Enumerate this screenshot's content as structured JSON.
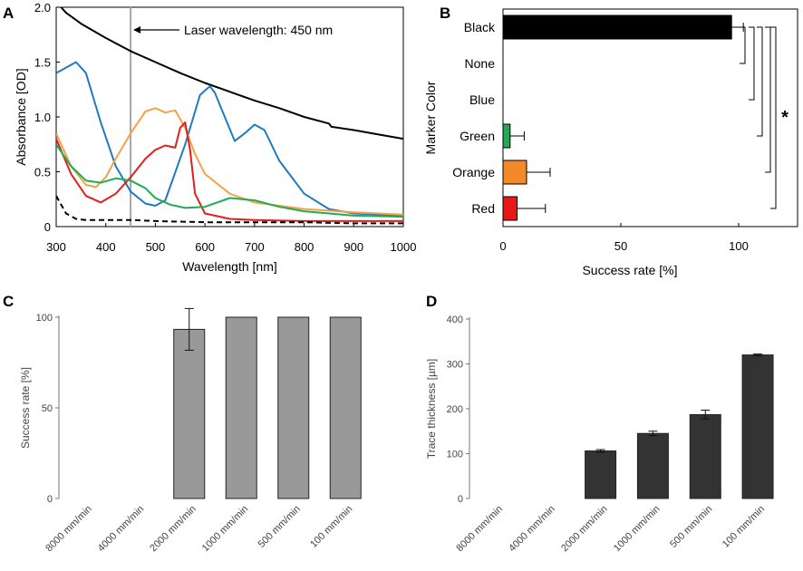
{
  "chart_data": [
    {
      "panel": "A",
      "type": "line",
      "title": "",
      "xlabel": "Wavelength [nm]",
      "ylabel": "Absorbance [OD]",
      "xlim": [
        300,
        1000
      ],
      "ylim": [
        0,
        2.0
      ],
      "x_ticks": [
        300,
        400,
        500,
        600,
        700,
        800,
        900,
        1000
      ],
      "y_ticks": [
        "0",
        "0.5",
        "1.0",
        "1.5",
        "2.0"
      ],
      "annotation": "Laser wavelength: 450 nm",
      "annotation_x": 450,
      "series": [
        {
          "name": "Black",
          "color": "#000000",
          "dash": false,
          "x": [
            300,
            320,
            350,
            400,
            450,
            500,
            550,
            600,
            650,
            700,
            750,
            800,
            850,
            855,
            900,
            950,
            1000
          ],
          "y": [
            2.05,
            1.95,
            1.85,
            1.72,
            1.6,
            1.5,
            1.4,
            1.31,
            1.23,
            1.15,
            1.08,
            1.0,
            0.94,
            0.91,
            0.88,
            0.84,
            0.8
          ]
        },
        {
          "name": "Blue",
          "color": "#1f7bc0",
          "dash": false,
          "x": [
            300,
            320,
            340,
            360,
            390,
            420,
            450,
            480,
            500,
            520,
            560,
            590,
            610,
            620,
            640,
            660,
            680,
            700,
            720,
            750,
            800,
            850,
            900,
            1000
          ],
          "y": [
            1.4,
            1.45,
            1.5,
            1.4,
            0.95,
            0.55,
            0.32,
            0.21,
            0.19,
            0.24,
            0.75,
            1.2,
            1.28,
            1.22,
            1.0,
            0.78,
            0.85,
            0.93,
            0.88,
            0.6,
            0.3,
            0.16,
            0.12,
            0.1
          ]
        },
        {
          "name": "Orange",
          "color": "#f4a24a",
          "dash": false,
          "x": [
            300,
            330,
            360,
            380,
            400,
            420,
            450,
            480,
            500,
            520,
            540,
            560,
            580,
            600,
            650,
            700,
            800,
            900,
            1000
          ],
          "y": [
            0.85,
            0.55,
            0.38,
            0.36,
            0.45,
            0.62,
            0.85,
            1.05,
            1.08,
            1.04,
            1.06,
            0.9,
            0.66,
            0.48,
            0.3,
            0.22,
            0.16,
            0.13,
            0.11
          ]
        },
        {
          "name": "Red",
          "color": "#e02020",
          "dash": false,
          "x": [
            300,
            330,
            360,
            390,
            420,
            450,
            480,
            500,
            520,
            540,
            550,
            560,
            570,
            580,
            600,
            650,
            700,
            800,
            1000
          ],
          "y": [
            0.8,
            0.48,
            0.28,
            0.22,
            0.3,
            0.45,
            0.62,
            0.7,
            0.74,
            0.72,
            0.9,
            0.95,
            0.7,
            0.3,
            0.12,
            0.07,
            0.06,
            0.05,
            0.05
          ]
        },
        {
          "name": "Green",
          "color": "#22aa55",
          "dash": false,
          "x": [
            300,
            330,
            360,
            390,
            420,
            450,
            480,
            500,
            530,
            560,
            600,
            650,
            700,
            750,
            800,
            900,
            1000
          ],
          "y": [
            0.75,
            0.55,
            0.42,
            0.4,
            0.44,
            0.42,
            0.35,
            0.26,
            0.2,
            0.17,
            0.18,
            0.26,
            0.24,
            0.18,
            0.14,
            0.1,
            0.09
          ]
        },
        {
          "name": "None",
          "color": "#000000",
          "dash": true,
          "x": [
            300,
            320,
            340,
            360,
            400,
            450,
            500,
            600,
            700,
            800,
            900,
            1000
          ],
          "y": [
            0.28,
            0.12,
            0.07,
            0.06,
            0.06,
            0.06,
            0.05,
            0.04,
            0.04,
            0.04,
            0.03,
            0.03
          ]
        }
      ]
    },
    {
      "panel": "B",
      "type": "bar",
      "orientation": "horizontal",
      "xlabel": "Success rate [%]",
      "ylabel": "Marker Color",
      "xlim": [
        0,
        125
      ],
      "x_ticks": [
        0,
        50,
        100
      ],
      "categories": [
        "Black",
        "None",
        "Blue",
        "Green",
        "Orange",
        "Red"
      ],
      "values": [
        97,
        0,
        0,
        3,
        10,
        6
      ],
      "errors": [
        5,
        0,
        0,
        6,
        10,
        12
      ],
      "colors": [
        "#000000",
        "#000000",
        "#1f7bc0",
        "#22aa55",
        "#f4892a",
        "#e81818"
      ],
      "significance_label": "*"
    },
    {
      "panel": "C",
      "type": "bar",
      "xlabel": "",
      "ylabel": "Success rate [%]",
      "ylim": [
        0,
        100
      ],
      "y_ticks": [
        0,
        50,
        100
      ],
      "categories": [
        "8000 mm/min",
        "4000 mm/min",
        "2000 mm/min",
        "1000 mm/min",
        "500 mm/min",
        "100 mm/min"
      ],
      "values": [
        0,
        0,
        93.3,
        100,
        100,
        100
      ],
      "errors": [
        0,
        0,
        11.5,
        0,
        0,
        0
      ],
      "bar_color": "#999999"
    },
    {
      "panel": "D",
      "type": "bar",
      "xlabel": "",
      "ylabel": "Trace thickness [µm]",
      "ylim": [
        0,
        400
      ],
      "y_ticks": [
        0,
        100,
        200,
        300,
        400
      ],
      "categories": [
        "8000 mm/min",
        "4000 mm/min",
        "2000 mm/min",
        "1000 mm/min",
        "500 mm/min",
        "100 mm/min"
      ],
      "values": [
        0,
        0,
        106,
        145,
        187,
        320
      ],
      "errors": [
        0,
        0,
        3,
        5,
        10,
        2
      ],
      "bar_color": "#333333"
    }
  ]
}
